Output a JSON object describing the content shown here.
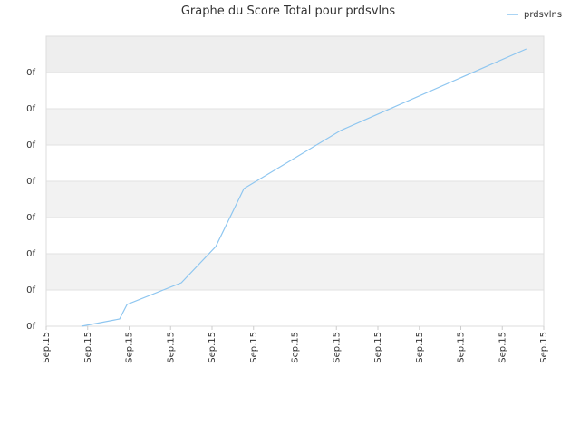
{
  "chart_data": {
    "type": "line",
    "title": "Graphe du Score Total pour prdsvlns",
    "xlim": [
      0,
      12
    ],
    "xticks": [
      {
        "value": 0,
        "label": "Sep.15"
      },
      {
        "value": 1,
        "label": "Sep.15"
      },
      {
        "value": 2,
        "label": "Sep.15"
      },
      {
        "value": 3,
        "label": "Sep.15"
      },
      {
        "value": 4,
        "label": "Sep.15"
      },
      {
        "value": 5,
        "label": "Sep.15"
      },
      {
        "value": 6,
        "label": "Sep.15"
      },
      {
        "value": 7,
        "label": "Sep.15"
      },
      {
        "value": 8,
        "label": "Sep.15"
      },
      {
        "value": 9,
        "label": "Sep.15"
      },
      {
        "value": 10,
        "label": "Sep.15"
      },
      {
        "value": 11,
        "label": "Sep.15"
      },
      {
        "value": 12,
        "label": "Sep.15"
      }
    ],
    "ylim": [
      0,
      8
    ],
    "yticks": [
      {
        "value": 0,
        "label": "0f"
      },
      {
        "value": 1,
        "label": "0f"
      },
      {
        "value": 2,
        "label": "0f"
      },
      {
        "value": 3,
        "label": "0f"
      },
      {
        "value": 4,
        "label": "0f"
      },
      {
        "value": 5,
        "label": "0f"
      },
      {
        "value": 6,
        "label": "0f"
      },
      {
        "value": 7,
        "label": "0f"
      }
    ],
    "grid": true,
    "legend": "top-right",
    "series": [
      {
        "name": "prdsvlns",
        "color": "#8ec6f0",
        "x": [
          0.85,
          1.77,
          1.95,
          3.26,
          4.09,
          4.77,
          7.1,
          11.58
        ],
        "values": [
          0,
          0.2,
          0.6,
          1.2,
          2.2,
          3.8,
          5.4,
          7.65
        ]
      }
    ]
  }
}
